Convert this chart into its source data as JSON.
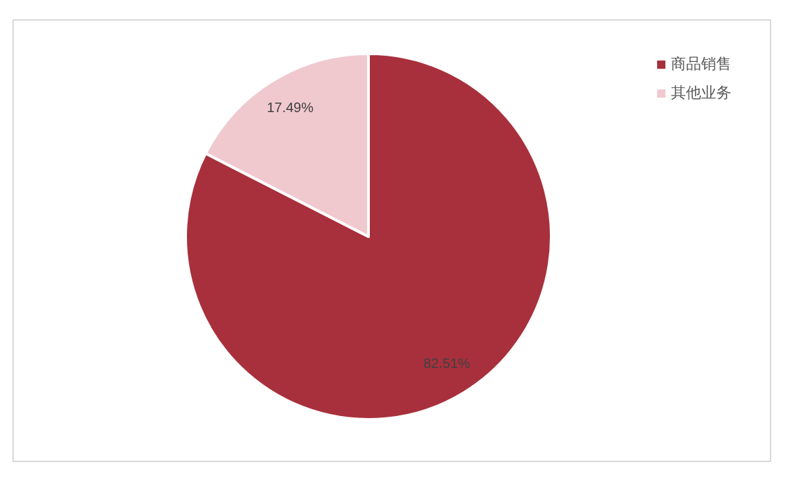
{
  "chart_data": {
    "type": "pie",
    "categories": [
      "商品销售",
      "其他业务"
    ],
    "values": [
      82.51,
      17.49
    ],
    "colors": [
      "#a8303c",
      "#f0c9cf"
    ],
    "value_labels": [
      "82.51%",
      "17.49%"
    ],
    "legend": "top right"
  }
}
